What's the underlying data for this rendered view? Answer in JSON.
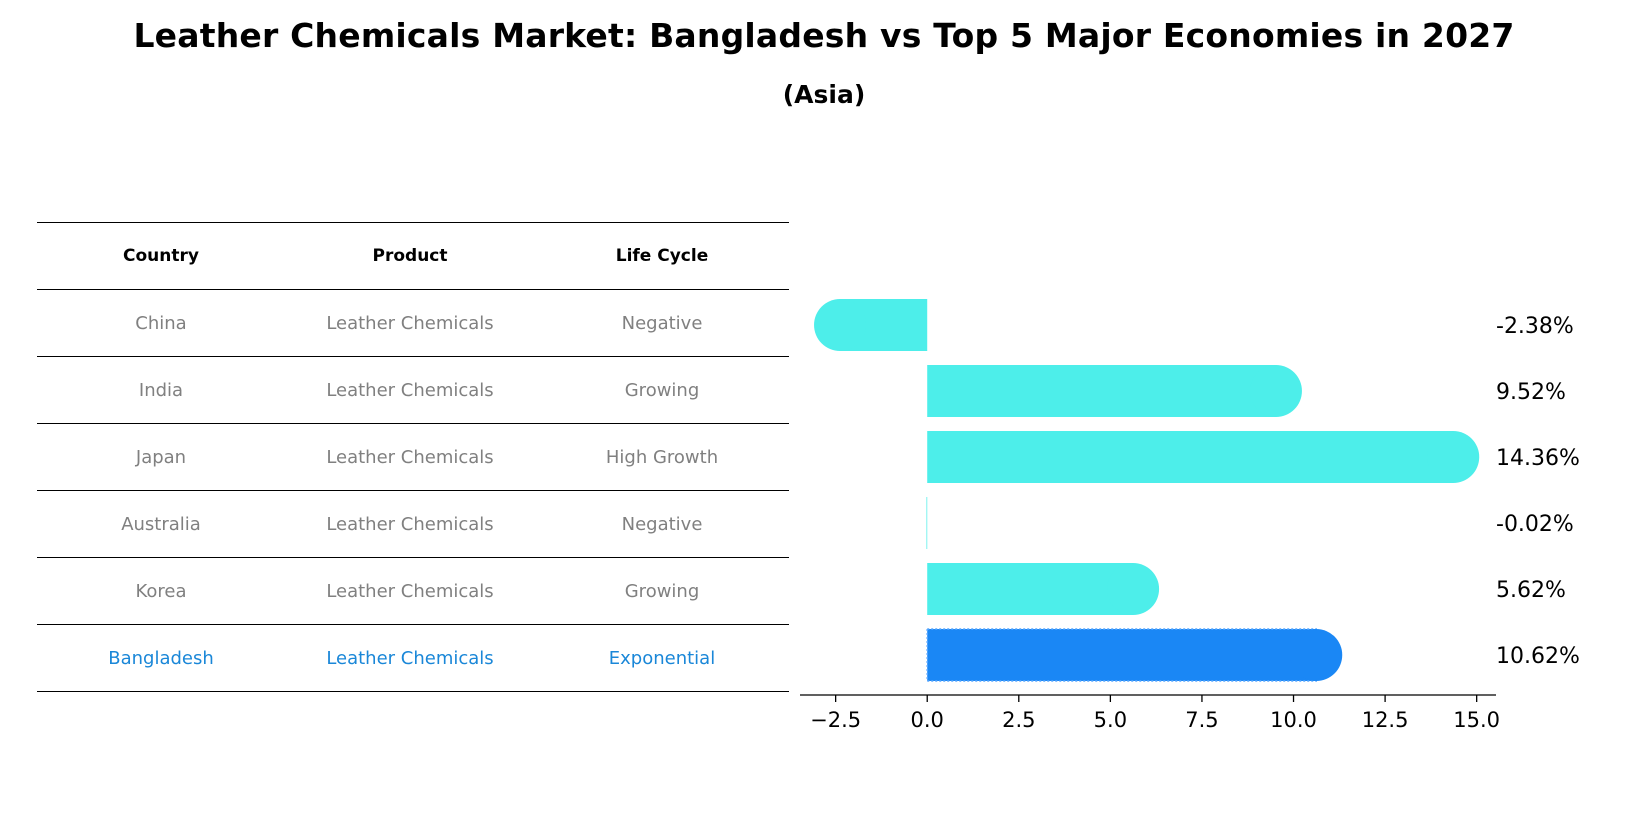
{
  "title": "Leather Chemicals Market: Bangladesh vs Top 5 Major Economies in 2027",
  "subtitle": "(Asia)",
  "table": {
    "headers": [
      "Country",
      "Product",
      "Life Cycle"
    ],
    "rows": [
      {
        "country": "China",
        "product": "Leather Chemicals",
        "life_cycle": "Negative"
      },
      {
        "country": "India",
        "product": "Leather Chemicals",
        "life_cycle": "Growing"
      },
      {
        "country": "Japan",
        "product": "Leather Chemicals",
        "life_cycle": "High Growth"
      },
      {
        "country": "Australia",
        "product": "Leather Chemicals",
        "life_cycle": "Negative"
      },
      {
        "country": "Korea",
        "product": "Leather Chemicals",
        "life_cycle": "Growing"
      },
      {
        "country": "Bangladesh",
        "product": "Leather Chemicals",
        "life_cycle": "Exponential"
      }
    ]
  },
  "colors": {
    "bar": "#4deeea",
    "highlight_bar": "#1a87f5",
    "highlight_text": "#1a87d8",
    "row_text": "#808080"
  },
  "chart_data": {
    "type": "bar",
    "orientation": "horizontal",
    "categories": [
      "China",
      "India",
      "Japan",
      "Australia",
      "Korea",
      "Bangladesh"
    ],
    "values": [
      -2.38,
      9.52,
      14.36,
      -0.02,
      5.62,
      10.62
    ],
    "value_labels": [
      "-2.38%",
      "9.52%",
      "14.36%",
      "-0.02%",
      "5.62%",
      "10.62%"
    ],
    "highlight": "Bangladesh",
    "xlim": [
      -3.2,
      15.2
    ],
    "xticks": [
      -2.5,
      0.0,
      2.5,
      5.0,
      7.5,
      10.0,
      12.5,
      15.0
    ],
    "xtick_labels": [
      "−2.5",
      "0.0",
      "2.5",
      "5.0",
      "7.5",
      "10.0",
      "12.5",
      "15.0"
    ]
  }
}
